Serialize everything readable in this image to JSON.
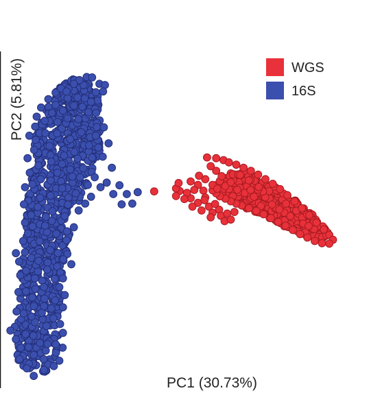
{
  "chart_data": {
    "type": "scatter",
    "title": "",
    "xlabel": "PC1 (30.73%)",
    "ylabel": "PC2 (5.81%)",
    "xlim": [
      0,
      100
    ],
    "ylim": [
      0,
      100
    ],
    "axes_visible": {
      "x": false,
      "y": true
    },
    "grid": false,
    "legend_position": "top-right",
    "series": [
      {
        "name": "WGS",
        "color": "#e8313a",
        "edge_color": "#a81b22",
        "points": [
          [
            56,
            60.5
          ],
          [
            58.5,
            60.3
          ],
          [
            60.5,
            59.8
          ],
          [
            62,
            59.2
          ],
          [
            64,
            58.6
          ],
          [
            66,
            57.8
          ],
          [
            68,
            57
          ],
          [
            70,
            56
          ],
          [
            72,
            54.8
          ],
          [
            74,
            53.6
          ],
          [
            76,
            52.2
          ],
          [
            78,
            50.6
          ],
          [
            80,
            49
          ],
          [
            82,
            47.2
          ],
          [
            84,
            45.4
          ],
          [
            86,
            43.4
          ],
          [
            88,
            41.6
          ],
          [
            89.5,
            40.2
          ],
          [
            90.5,
            38.9
          ],
          [
            89.5,
            37.9
          ],
          [
            87.5,
            38
          ],
          [
            85.5,
            38.6
          ],
          [
            83.5,
            39.5
          ],
          [
            81.5,
            40.4
          ],
          [
            79.5,
            41.5
          ],
          [
            77.5,
            42.6
          ],
          [
            75.5,
            43.6
          ],
          [
            73.5,
            44.6
          ],
          [
            71.5,
            45.6
          ],
          [
            69.5,
            46.5
          ],
          [
            67.5,
            47.2
          ],
          [
            65.5,
            47.9
          ],
          [
            64,
            48.4
          ],
          [
            62.5,
            49
          ],
          [
            61,
            49.7
          ],
          [
            59.5,
            50.3
          ],
          [
            58.5,
            51.1
          ],
          [
            57.5,
            51.9
          ],
          [
            58.2,
            53.2
          ],
          [
            59.5,
            54.3
          ],
          [
            60,
            55.6
          ],
          [
            58.5,
            57
          ],
          [
            57,
            58.2
          ],
          [
            61,
            53
          ],
          [
            62.5,
            54
          ],
          [
            55.5,
            54.8
          ],
          [
            53.5,
            53.3
          ],
          [
            55,
            51.8
          ],
          [
            51.5,
            49.8
          ],
          [
            53.5,
            48.6
          ],
          [
            55.5,
            50
          ],
          [
            56.5,
            47.6
          ],
          [
            58.2,
            48.3
          ],
          [
            54.5,
            46.6
          ],
          [
            57.5,
            46
          ],
          [
            59.3,
            46.8
          ],
          [
            48.5,
            51.7
          ],
          [
            50.5,
            51.2
          ],
          [
            52.5,
            52
          ],
          [
            47.5,
            50.4
          ],
          [
            49.8,
            49.6
          ],
          [
            41.5,
            51.6
          ],
          [
            47.5,
            52.4
          ],
          [
            48.2,
            53.8
          ],
          [
            51.5,
            54.2
          ],
          [
            53.8,
            55.7
          ],
          [
            57.5,
            53.3
          ],
          [
            58.8,
            52.3
          ],
          [
            55.3,
            49.3
          ],
          [
            52,
            47.6
          ],
          [
            57,
            44.8
          ],
          [
            59.8,
            45.2
          ],
          [
            61.5,
            45.8
          ],
          [
            63.5,
            46.2
          ],
          [
            60.8,
            43.8
          ],
          [
            62.5,
            44.2
          ]
        ]
      },
      {
        "name": "16S",
        "color": "#3b4fae",
        "edge_color": "#232f78",
        "points": [
          [
            18,
            78.5
          ],
          [
            21,
            80.8
          ],
          [
            23,
            81.6
          ],
          [
            24.5,
            81.5
          ],
          [
            26.5,
            79.8
          ],
          [
            28,
            79.5
          ],
          [
            25.5,
            77.6
          ],
          [
            27.5,
            77.8
          ],
          [
            20.5,
            76.2
          ],
          [
            22.5,
            76
          ],
          [
            14.5,
            77.5
          ],
          [
            16,
            78.6
          ],
          [
            17.5,
            77.8
          ],
          [
            19.5,
            79.8
          ],
          [
            12.5,
            75.8
          ],
          [
            14.5,
            74.3
          ],
          [
            10.5,
            73.6
          ],
          [
            13.5,
            72.2
          ],
          [
            16.5,
            72.8
          ],
          [
            19.5,
            74.1
          ],
          [
            21.8,
            73.8
          ],
          [
            24.2,
            75.1
          ],
          [
            23.5,
            72.4
          ],
          [
            27.7,
            68.4
          ],
          [
            25.5,
            66.2
          ],
          [
            29,
            64.2
          ],
          [
            26.2,
            63.1
          ],
          [
            27.4,
            60.7
          ],
          [
            24.5,
            60.5
          ],
          [
            29.9,
            57.8
          ],
          [
            28.5,
            53.9
          ],
          [
            26.8,
            52.7
          ],
          [
            25.2,
            55.3
          ],
          [
            30.3,
            50.9
          ],
          [
            22.6,
            48.4
          ],
          [
            24.2,
            50.2
          ],
          [
            20.8,
            46.6
          ],
          [
            19.5,
            42.2
          ],
          [
            17.5,
            38.8
          ],
          [
            17.7,
            35.2
          ],
          [
            18.8,
            32.5
          ],
          [
            16.5,
            28.8
          ],
          [
            15.5,
            26.5
          ],
          [
            17,
            24.4
          ],
          [
            16.5,
            21.2
          ],
          [
            15,
            18.8
          ],
          [
            16.5,
            14.5
          ],
          [
            14.5,
            11.5
          ],
          [
            15.5,
            7.2
          ],
          [
            14,
            5.8
          ],
          [
            11.3,
            4.8
          ],
          [
            8.5,
            3.2
          ],
          [
            6.6,
            5.2
          ],
          [
            4.6,
            7.6
          ],
          [
            4.9,
            10.6
          ],
          [
            3.6,
            12.8
          ],
          [
            3.3,
            16.1
          ],
          [
            3.8,
            20.1
          ],
          [
            4.3,
            25.2
          ],
          [
            4.8,
            29.6
          ],
          [
            4.5,
            33.2
          ],
          [
            3.6,
            35.4
          ],
          [
            5.6,
            38.6
          ],
          [
            6.1,
            43.4
          ],
          [
            5.8,
            48.2
          ],
          [
            6.1,
            52.7
          ],
          [
            7.4,
            56.5
          ],
          [
            6.8,
            60.3
          ],
          [
            8.6,
            62.5
          ],
          [
            7.3,
            66.2
          ],
          [
            8.9,
            68.6
          ],
          [
            9.3,
            71.2
          ],
          [
            11.5,
            70.1
          ],
          [
            9,
            65.1
          ],
          [
            12.8,
            63.5
          ],
          [
            14.9,
            66.8
          ],
          [
            18.5,
            65.3
          ],
          [
            21.5,
            67.1
          ],
          [
            16.8,
            61
          ],
          [
            20.5,
            60.2
          ],
          [
            15,
            56.5
          ],
          [
            19.1,
            55.5
          ],
          [
            21.2,
            55.3
          ],
          [
            23.3,
            53.3
          ],
          [
            20,
            51.1
          ],
          [
            16.3,
            52.4
          ],
          [
            13.1,
            50.5
          ],
          [
            10.4,
            54.8
          ],
          [
            9.6,
            47.5
          ],
          [
            13.6,
            46.4
          ],
          [
            17,
            45.1
          ],
          [
            11.6,
            42.6
          ],
          [
            14.7,
            40.5
          ],
          [
            10.1,
            38.5
          ],
          [
            13,
            36.2
          ],
          [
            9.8,
            33.4
          ],
          [
            12.2,
            31.1
          ],
          [
            8.8,
            28.8
          ],
          [
            11.3,
            26.5
          ],
          [
            8.1,
            23.8
          ],
          [
            11.3,
            21.5
          ],
          [
            7.9,
            18.8
          ],
          [
            12,
            16.3
          ],
          [
            8.4,
            13.8
          ],
          [
            12.3,
            11.6
          ],
          [
            8.5,
            8.7
          ],
          [
            11.2,
            7.6
          ],
          [
            6.9,
            40.6
          ],
          [
            16.6,
            33.8
          ],
          [
            13.9,
            18.3
          ],
          [
            6.4,
            30.8
          ],
          [
            18.5,
            57.4
          ],
          [
            13.3,
            59.4
          ],
          [
            2.1,
            15.1
          ],
          [
            32,
            53.2
          ],
          [
            34,
            50.9
          ],
          [
            37,
            51.4
          ],
          [
            35.5,
            48.4
          ],
          [
            32.6,
            48.2
          ]
        ]
      }
    ]
  },
  "legend": {
    "items": [
      {
        "label": "WGS",
        "color": "#e8313a"
      },
      {
        "label": "16S",
        "color": "#3b4fae"
      }
    ]
  }
}
